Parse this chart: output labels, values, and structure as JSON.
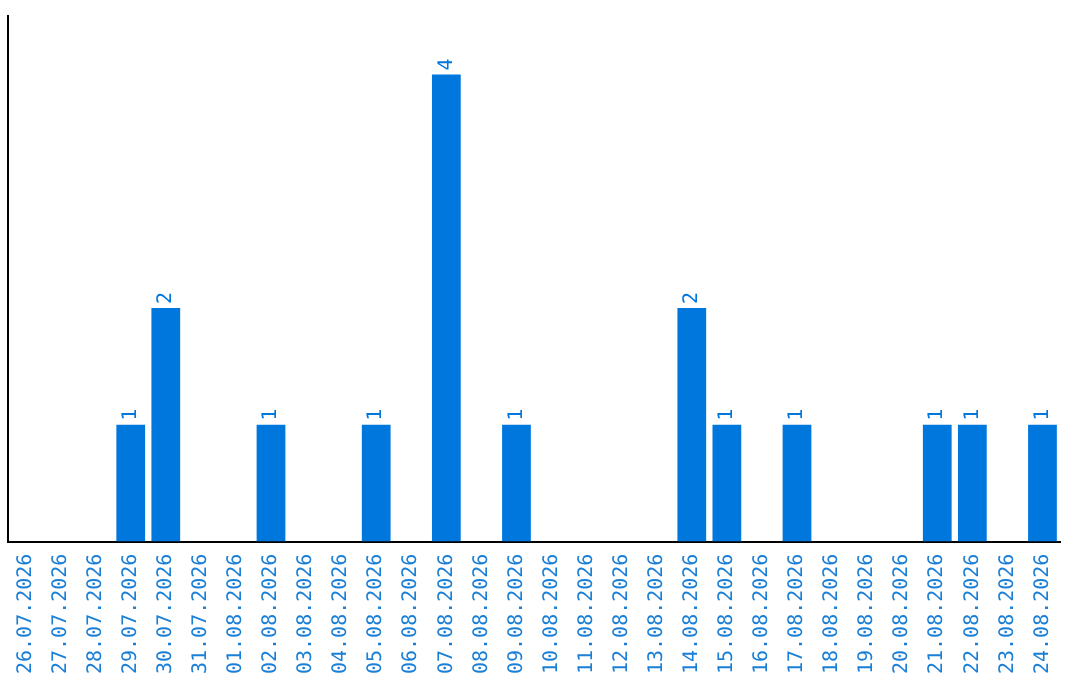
{
  "chart_data": {
    "type": "bar",
    "categories": [
      "26.07.2026",
      "27.07.2026",
      "28.07.2026",
      "29.07.2026",
      "30.07.2026",
      "31.07.2026",
      "01.08.2026",
      "02.08.2026",
      "03.08.2026",
      "04.08.2026",
      "05.08.2026",
      "06.08.2026",
      "07.08.2026",
      "08.08.2026",
      "09.08.2026",
      "10.08.2026",
      "11.08.2026",
      "12.08.2026",
      "13.08.2026",
      "14.08.2026",
      "15.08.2026",
      "16.08.2026",
      "17.08.2026",
      "18.08.2026",
      "19.08.2026",
      "20.08.2026",
      "21.08.2026",
      "22.08.2026",
      "23.08.2026",
      "24.08.2026"
    ],
    "values": [
      0,
      0,
      0,
      1,
      2,
      0,
      0,
      1,
      0,
      0,
      1,
      0,
      4,
      0,
      1,
      0,
      0,
      0,
      0,
      2,
      1,
      0,
      1,
      0,
      0,
      0,
      1,
      1,
      0,
      1
    ],
    "value_labels": [
      null,
      null,
      null,
      "1",
      "2",
      null,
      null,
      "1",
      null,
      null,
      "1",
      null,
      "4",
      null,
      "1",
      null,
      null,
      null,
      null,
      "2",
      "1",
      null,
      "1",
      null,
      null,
      null,
      "1",
      "1",
      null,
      "1"
    ],
    "color": "#0077dd",
    "tick_labels": "x",
    "grid": false,
    "legend": false
  }
}
